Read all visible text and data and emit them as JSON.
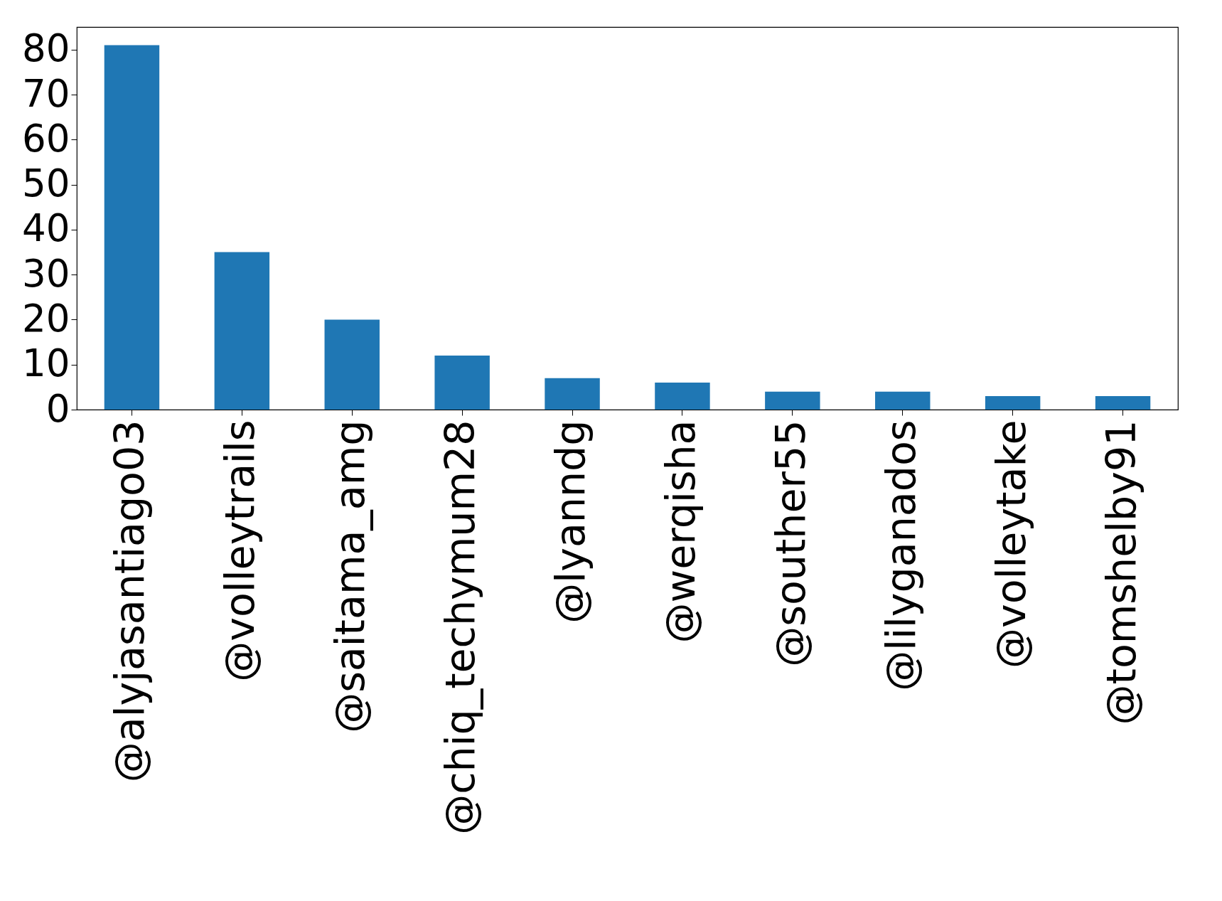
{
  "chart_data": {
    "type": "bar",
    "categories": [
      "@alyjasantiago03",
      "@volleytrails",
      "@saitama_amg",
      "@chiq_techymum28",
      "@lyanndg",
      "@werqisha",
      "@souther55",
      "@lilyganados",
      "@volleytake",
      "@tomshelby91"
    ],
    "values": [
      81,
      35,
      20,
      12,
      7,
      6,
      4,
      4,
      3,
      3
    ],
    "color": "#1f77b4",
    "ylim": [
      0,
      85.05
    ],
    "yticks": [
      0,
      10,
      20,
      30,
      40,
      50,
      60,
      70,
      80
    ],
    "grid": false
  }
}
